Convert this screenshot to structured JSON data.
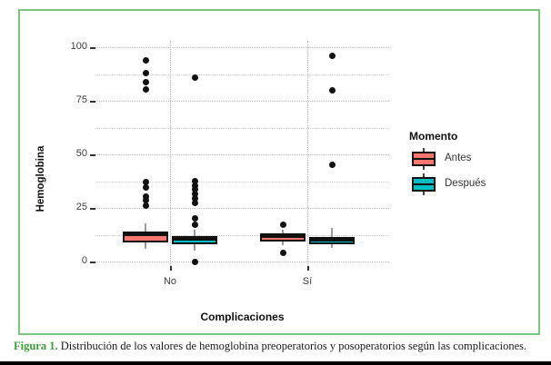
{
  "figure": {
    "caption_label": "Figura 1.",
    "caption_text": " Distribución de los valores de hemoglobina preoperatorios y posoperatorios según las complicaciones.",
    "border_color": "#7cc67c",
    "caption_label_color": "#3a9e3a"
  },
  "chart_data": {
    "type": "boxplot",
    "title": "",
    "xlabel": "Complicaciones",
    "ylabel": "Hemoglobina",
    "categories": [
      "No",
      "Sí"
    ],
    "ylim": [
      0,
      100
    ],
    "yticks": [
      0,
      25,
      50,
      75,
      100
    ],
    "minor_gridlines": [
      12.5,
      37.5,
      62.5,
      87.5
    ],
    "grid_style": "dotted",
    "legend_title": "Momento",
    "legend_position": "right",
    "series": [
      {
        "name": "Antes",
        "color": "#f8766d",
        "boxes": [
          {
            "category": "No",
            "q1": 9,
            "median": 12.5,
            "q3": 14,
            "whisker_low": 6,
            "whisker_high": 18,
            "outliers": [
              94,
              88,
              83.5,
              80.5,
              37,
              34.5,
              30.5,
              28.5,
              26
            ]
          },
          {
            "category": "Sí",
            "q1": 9.5,
            "median": 11.5,
            "q3": 13,
            "whisker_low": 7.5,
            "whisker_high": 15,
            "outliers": [
              17,
              4
            ]
          }
        ]
      },
      {
        "name": "Después",
        "color": "#00bfc4",
        "boxes": [
          {
            "category": "No",
            "q1": 8,
            "median": 10.5,
            "q3": 12,
            "whisker_low": 5,
            "whisker_high": 15,
            "outliers": [
              86,
              37.5,
              35.5,
              33.5,
              31.5,
              29.5,
              27.5,
              20,
              17,
              0
            ]
          },
          {
            "category": "Sí",
            "q1": 8,
            "median": 10,
            "q3": 11.5,
            "whisker_low": 6.5,
            "whisker_high": 15.5,
            "outliers": [
              96,
              80,
              45
            ]
          }
        ]
      }
    ]
  }
}
